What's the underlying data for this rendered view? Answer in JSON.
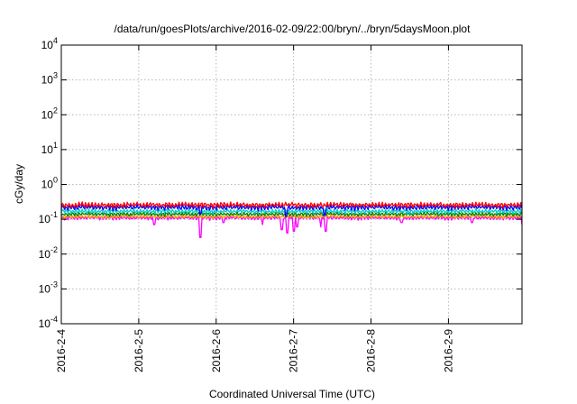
{
  "chart_data": {
    "type": "line",
    "title": "/data/run/goesPlots/archive/2016-02-09/22:00/bryn/../bryn/5daysMoon.plot",
    "xlabel": "Coordinated Universal Time (UTC)",
    "ylabel": "cGy/day",
    "yscale": "log",
    "ylim": [
      0.0001,
      10000
    ],
    "xlim": [
      0,
      5.95
    ],
    "grid": true,
    "x_ticks": [
      {
        "value": 0,
        "label": "2016-2-4"
      },
      {
        "value": 1,
        "label": "2016-2-5"
      },
      {
        "value": 2,
        "label": "2016-2-6"
      },
      {
        "value": 3,
        "label": "2016-2-7"
      },
      {
        "value": 4,
        "label": "2016-2-8"
      },
      {
        "value": 5,
        "label": "2016-2-9"
      }
    ],
    "y_ticks": [
      {
        "value": 0.0001,
        "base": "10",
        "exp": "-4"
      },
      {
        "value": 0.001,
        "base": "10",
        "exp": "-3"
      },
      {
        "value": 0.01,
        "base": "10",
        "exp": "-2"
      },
      {
        "value": 0.1,
        "base": "10",
        "exp": "-1"
      },
      {
        "value": 1,
        "base": "10",
        "exp": "0"
      },
      {
        "value": 10,
        "base": "10",
        "exp": "1"
      },
      {
        "value": 100,
        "base": "10",
        "exp": "2"
      },
      {
        "value": 1000,
        "base": "10",
        "exp": "3"
      },
      {
        "value": 10000,
        "base": "10",
        "exp": "4"
      }
    ],
    "series": [
      {
        "color": "#ff00ff",
        "baseline": 0.11,
        "amplitude": 0.12,
        "dips": [
          [
            1.8,
            0.03
          ],
          [
            1.2,
            0.07
          ],
          [
            2.1,
            0.08
          ],
          [
            2.6,
            0.07
          ],
          [
            2.85,
            0.05
          ],
          [
            2.92,
            0.04
          ],
          [
            3.0,
            0.045
          ],
          [
            3.05,
            0.06
          ],
          [
            3.35,
            0.06
          ],
          [
            3.42,
            0.045
          ],
          [
            4.4,
            0.08
          ],
          [
            5.3,
            0.08
          ],
          [
            5.95,
            0.07
          ]
        ]
      },
      {
        "color": "#ffa500",
        "baseline": 0.12,
        "amplitude": 0.1,
        "dips": []
      },
      {
        "color": "#008000",
        "baseline": 0.14,
        "amplitude": 0.12,
        "dips": []
      },
      {
        "color": "#00cccc",
        "baseline": 0.17,
        "amplitude": 0.14,
        "dips": []
      },
      {
        "color": "#0000ff",
        "baseline": 0.22,
        "amplitude": 0.16,
        "dips": [
          [
            2.9,
            0.12
          ],
          [
            3.4,
            0.13
          ],
          [
            1.8,
            0.14
          ]
        ]
      },
      {
        "color": "#ff0000",
        "baseline": 0.26,
        "amplitude": 0.17,
        "dips": []
      }
    ]
  }
}
